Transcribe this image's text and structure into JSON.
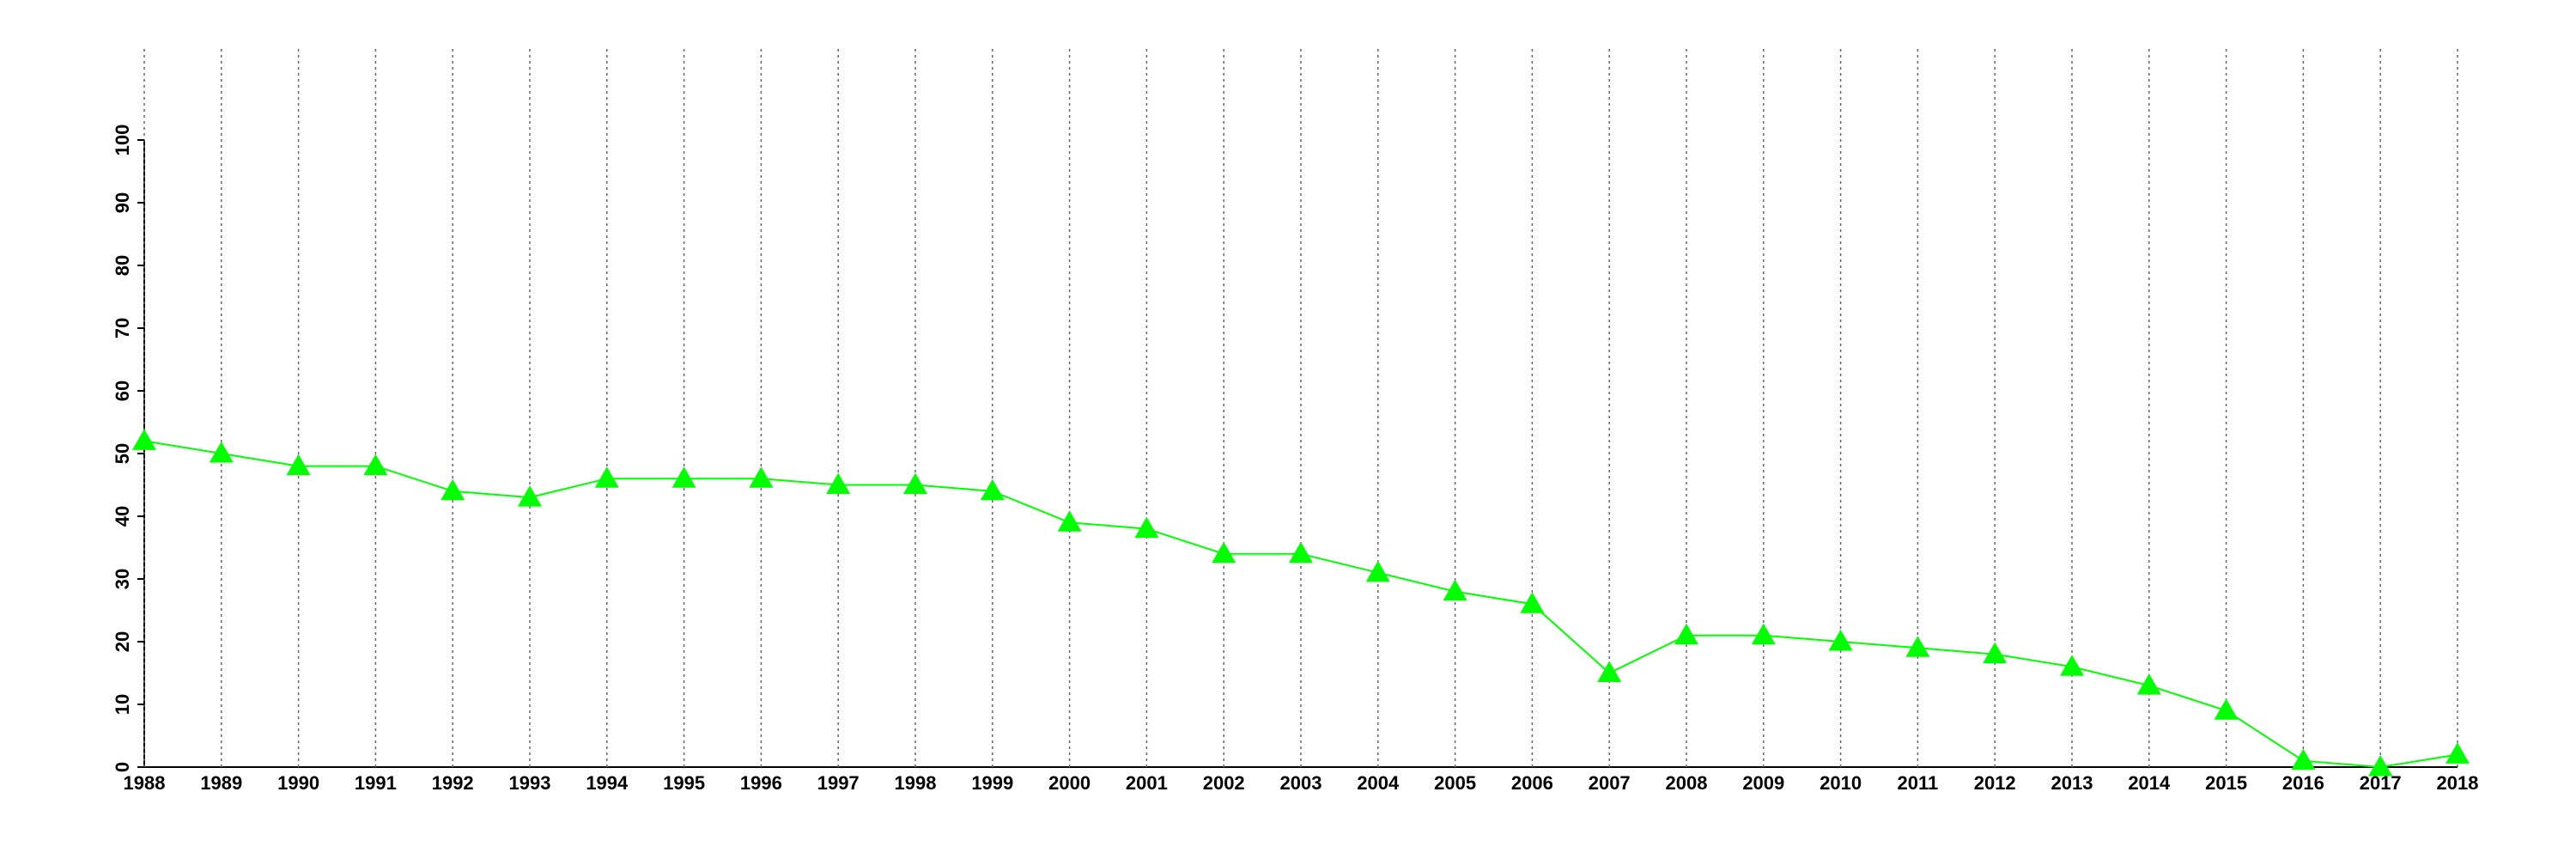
{
  "chart_data": {
    "type": "line",
    "x": [
      1988,
      1989,
      1990,
      1991,
      1992,
      1993,
      1994,
      1995,
      1996,
      1997,
      1998,
      1999,
      2000,
      2001,
      2002,
      2003,
      2004,
      2005,
      2006,
      2007,
      2008,
      2009,
      2010,
      2011,
      2012,
      2013,
      2014,
      2015,
      2016,
      2017,
      2018
    ],
    "series": [
      {
        "color": "#00ff00",
        "marker": "triangle",
        "values": [
          52,
          50,
          48,
          48,
          44,
          43,
          46,
          46,
          46,
          45,
          45,
          44,
          39,
          38,
          34,
          34,
          31,
          28,
          26,
          15,
          21,
          21,
          20,
          19,
          18,
          16,
          13,
          9,
          1,
          0,
          2
        ]
      }
    ],
    "xlim": [
      1988,
      2018
    ],
    "xticks": [
      1988,
      1989,
      1990,
      1991,
      1992,
      1993,
      1994,
      1995,
      1996,
      1997,
      1998,
      1999,
      2000,
      2001,
      2002,
      2003,
      2004,
      2005,
      2006,
      2007,
      2008,
      2009,
      2010,
      2011,
      2012,
      2013,
      2014,
      2015,
      2016,
      2017,
      2018
    ],
    "ylim": [
      0,
      100
    ],
    "yticks": [
      0,
      10,
      20,
      30,
      40,
      50,
      60,
      70,
      80,
      90,
      100
    ],
    "grid": "x"
  }
}
